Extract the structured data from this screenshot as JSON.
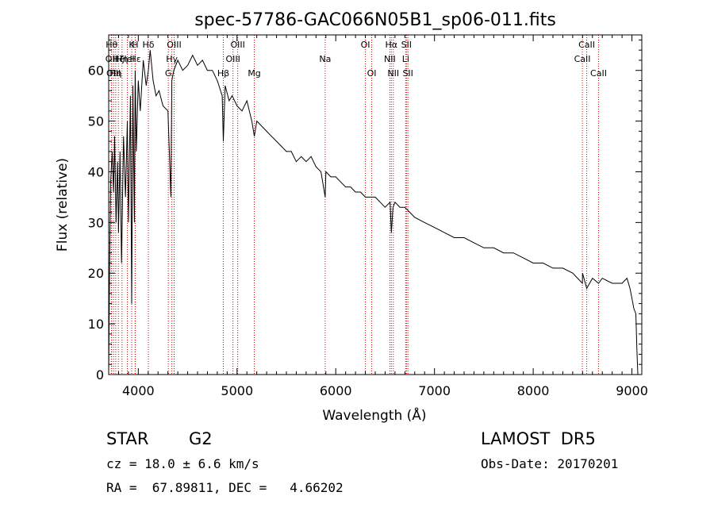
{
  "chart_data": {
    "type": "line",
    "title": "spec-57786-GAC066N05B1_sp06-011.fits",
    "xlabel": "Wavelength (Å)",
    "ylabel": "Flux (relative)",
    "xlim": [
      3700,
      9100
    ],
    "ylim": [
      0,
      67
    ],
    "xticks": [
      "4000",
      "5000",
      "6000",
      "7000",
      "8000",
      "9000"
    ],
    "yticks": [
      "0",
      "10",
      "20",
      "30",
      "40",
      "50",
      "60"
    ],
    "xtick_values": [
      4000,
      5000,
      6000,
      7000,
      8000,
      9000
    ],
    "ytick_values": [
      0,
      10,
      20,
      30,
      40,
      50,
      60
    ],
    "grid": false,
    "series": [
      {
        "x": [
          3700,
          3710,
          3720,
          3735,
          3750,
          3760,
          3775,
          3790,
          3800,
          3815,
          3830,
          3850,
          3870,
          3889,
          3900,
          3920,
          3933,
          3945,
          3960,
          3968,
          3980,
          4000,
          4020,
          4050,
          4080,
          4102,
          4120,
          4150,
          4180,
          4210,
          4250,
          4300,
          4330,
          4340,
          4360,
          4400,
          4450,
          4500,
          4550,
          4600,
          4650,
          4700,
          4750,
          4800,
          4850,
          4861,
          4880,
          4920,
          4950,
          5000,
          5050,
          5100,
          5150,
          5175,
          5200,
          5250,
          5300,
          5350,
          5400,
          5450,
          5500,
          5550,
          5600,
          5650,
          5700,
          5750,
          5800,
          5850,
          5893,
          5900,
          5950,
          6000,
          6050,
          6100,
          6150,
          6200,
          6250,
          6300,
          6350,
          6400,
          6450,
          6500,
          6550,
          6563,
          6580,
          6600,
          6650,
          6700,
          6750,
          6800,
          6900,
          7000,
          7100,
          7200,
          7300,
          7400,
          7500,
          7600,
          7700,
          7800,
          7900,
          8000,
          8100,
          8200,
          8300,
          8400,
          8498,
          8500,
          8542,
          8600,
          8662,
          8700,
          8800,
          8900,
          8950,
          8980,
          9000,
          9020,
          9040,
          9050,
          9060
        ],
        "y": [
          0,
          22,
          38,
          44,
          36,
          47,
          30,
          42,
          28,
          44,
          22,
          47,
          35,
          50,
          30,
          55,
          14,
          57,
          30,
          60,
          44,
          58,
          52,
          62,
          57,
          60,
          64,
          58,
          55,
          56,
          53,
          52,
          35,
          58,
          60,
          62,
          60,
          61,
          63,
          61,
          62,
          60,
          60,
          58,
          55,
          46,
          57,
          54,
          55,
          53,
          52,
          54,
          50,
          47,
          50,
          49,
          48,
          47,
          46,
          45,
          44,
          44,
          42,
          43,
          42,
          43,
          41,
          40,
          35,
          40,
          39,
          39,
          38,
          37,
          37,
          36,
          36,
          35,
          35,
          35,
          34,
          33,
          34,
          28,
          33,
          34,
          33,
          33,
          32,
          31,
          30,
          29,
          28,
          27,
          27,
          26,
          25,
          25,
          24,
          24,
          23,
          22,
          22,
          21,
          21,
          20,
          18,
          20,
          17,
          19,
          18,
          19,
          18,
          18,
          19,
          17,
          15,
          13,
          12,
          5,
          0
        ]
      }
    ],
    "line_labels": [
      {
        "wl": 3730,
        "name": "Hθ",
        "row": 0
      },
      {
        "wl": 3727,
        "name": "OII",
        "row": 1
      },
      {
        "wl": 3750,
        "name": "OIII",
        "row": 2
      },
      {
        "wl": 3771,
        "name": "Hη",
        "row": 2
      },
      {
        "wl": 3798,
        "name": "Hζ",
        "row": 1
      },
      {
        "wl": 3835,
        "name": "Hη",
        "row": 1
      },
      {
        "wl": 3889,
        "name": "HeI",
        "row": 1
      },
      {
        "wl": 3933,
        "name": "K",
        "row": 0
      },
      {
        "wl": 3968,
        "name": "H",
        "row": 0
      },
      {
        "wl": 3970,
        "name": "Hε",
        "row": 1
      },
      {
        "wl": 4102,
        "name": "Hδ",
        "row": 0
      },
      {
        "wl": 4304,
        "name": "G",
        "row": 2
      },
      {
        "wl": 4340,
        "name": "Hγ",
        "row": 1
      },
      {
        "wl": 4363,
        "name": "OIII",
        "row": 0
      },
      {
        "wl": 4861,
        "name": "Hβ",
        "row": 2
      },
      {
        "wl": 4959,
        "name": "OIII",
        "row": 1
      },
      {
        "wl": 5007,
        "name": "OIII",
        "row": 0
      },
      {
        "wl": 5175,
        "name": "Mg",
        "row": 2
      },
      {
        "wl": 5893,
        "name": "Na",
        "row": 1
      },
      {
        "wl": 6300,
        "name": "OI",
        "row": 0
      },
      {
        "wl": 6364,
        "name": "OI",
        "row": 2
      },
      {
        "wl": 6548,
        "name": "NII",
        "row": 1
      },
      {
        "wl": 6563,
        "name": "Hα",
        "row": 0
      },
      {
        "wl": 6583,
        "name": "NII",
        "row": 2
      },
      {
        "wl": 6708,
        "name": "Li",
        "row": 1
      },
      {
        "wl": 6716,
        "name": "SII",
        "row": 0
      },
      {
        "wl": 6731,
        "name": "SII",
        "row": 2
      },
      {
        "wl": 8498,
        "name": "CaII",
        "row": 1
      },
      {
        "wl": 8542,
        "name": "CaII",
        "row": 0
      },
      {
        "wl": 8662,
        "name": "CaII",
        "row": 2
      }
    ],
    "line_color": "#cc0000",
    "spectrum_color": "#000000"
  },
  "info": {
    "object_class": "STAR",
    "subclass": "G2",
    "survey": "LAMOST  DR5",
    "redshift_text": "cz = 18.0 ± 6.6 km/s",
    "obs_date": "Obs-Date: 20170201",
    "coords": "RA =  67.89811, DEC =   4.66202"
  }
}
